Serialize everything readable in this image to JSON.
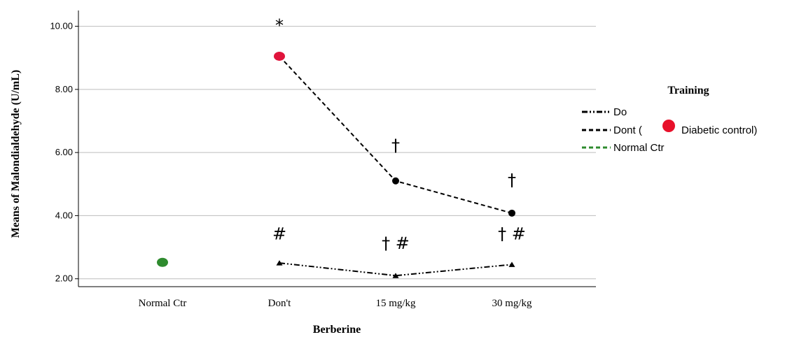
{
  "chart_data": {
    "type": "line",
    "ylabel": "Means of Malondialdehyde (U/mL)",
    "xlabel": "Berberine",
    "categories": [
      "Normal Ctr",
      "Don't",
      "15 mg/kg",
      "30 mg/kg"
    ],
    "y_ticks": [
      "2.00",
      "4.00",
      "6.00",
      "8.00",
      "10.00"
    ],
    "ylim": [
      1.75,
      10.5
    ],
    "grid": true,
    "legend": {
      "title": "Training",
      "placement": "right",
      "entries": [
        {
          "prefix": "Do",
          "suffix": "",
          "style": "dash-dot-dot",
          "color": "#000000"
        },
        {
          "prefix": "Dont (",
          "suffix": "Diabetic control)",
          "style": "dashed",
          "color": "#000000",
          "marker_color": "#e8102a"
        },
        {
          "prefix": "Normal Ctr",
          "suffix": "",
          "style": "dashed",
          "color": "#2e8b2e"
        }
      ]
    },
    "series": [
      {
        "name": "Do",
        "style": "dash-dot-dot",
        "marker": "triangle",
        "color": "#000000",
        "x": [
          "Don't",
          "15 mg/kg",
          "30 mg/kg"
        ],
        "values": [
          2.5,
          2.1,
          2.45
        ]
      },
      {
        "name": "Dont",
        "style": "dashed",
        "marker": "circle",
        "color": "#000000",
        "x": [
          "Don't",
          "15 mg/kg",
          "30 mg/kg"
        ],
        "values": [
          9.05,
          5.1,
          4.08
        ],
        "highlight": {
          "category": "Don't",
          "color": "#e0143c"
        }
      },
      {
        "name": "Normal Ctr",
        "style": "dashed",
        "marker": "circle",
        "color": "#2e8b2e",
        "x": [
          "Normal Ctr"
        ],
        "values": [
          2.52
        ]
      }
    ],
    "annotations": [
      {
        "text": "*",
        "category": "Don't",
        "y": 9.85
      },
      {
        "text": "†",
        "category": "15 mg/kg",
        "y": 6.05
      },
      {
        "text": "†",
        "category": "30 mg/kg",
        "y": 4.95
      },
      {
        "text": "#",
        "category": "Don't",
        "y": 3.25
      },
      {
        "text": "† #",
        "category": "15 mg/kg",
        "y": 2.95
      },
      {
        "text": "† #",
        "category": "30 mg/kg",
        "y": 3.25
      }
    ]
  }
}
